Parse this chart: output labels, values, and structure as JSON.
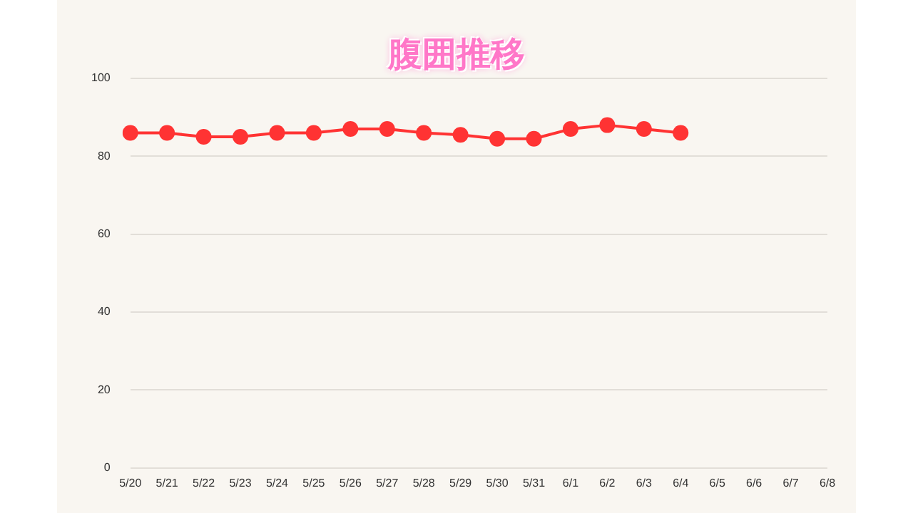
{
  "chart_data": {
    "type": "line",
    "title": "腹囲推移",
    "categories": [
      "5/20",
      "5/21",
      "5/22",
      "5/23",
      "5/24",
      "5/25",
      "5/26",
      "5/27",
      "5/28",
      "5/29",
      "5/30",
      "5/31",
      "6/1",
      "6/2",
      "6/3",
      "6/4",
      "6/5",
      "6/6",
      "6/7",
      "6/8"
    ],
    "series": [
      {
        "color": "#ff3333",
        "values": [
          86,
          86,
          85,
          85,
          86,
          86,
          87,
          87,
          86,
          85.5,
          84.5,
          84.5,
          87,
          88,
          87,
          86,
          null,
          null,
          null,
          null
        ]
      }
    ],
    "ylim": [
      0,
      100
    ],
    "yticks": [
      0,
      20,
      40,
      60,
      80,
      100
    ],
    "grid": "y",
    "legend": false,
    "marker": "circle",
    "line_style": "solid"
  }
}
